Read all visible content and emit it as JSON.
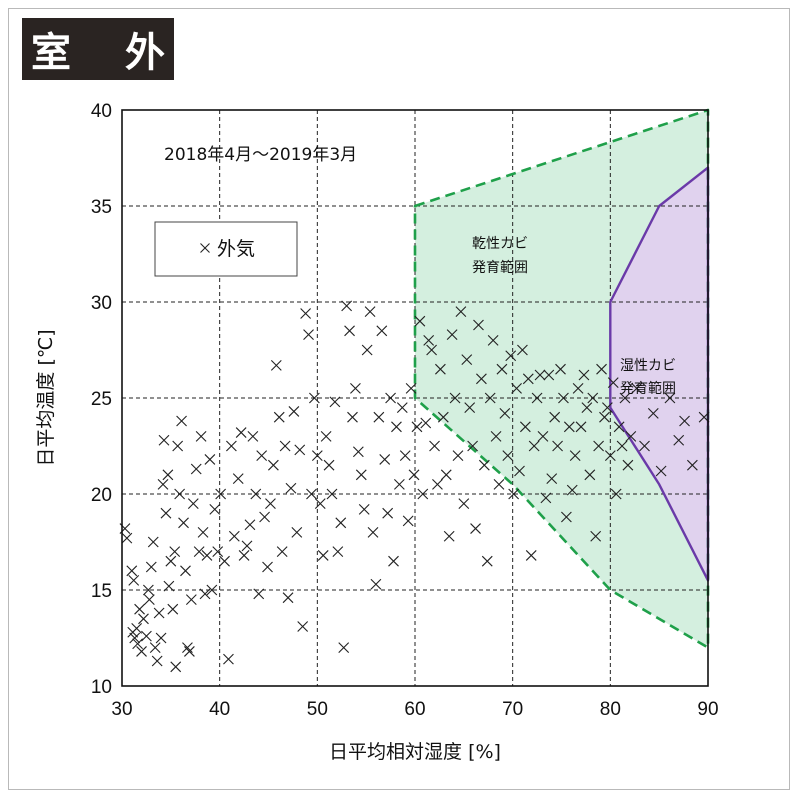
{
  "badge": {
    "label": "室 外"
  },
  "colors": {
    "dry_fill": "#d4efdf",
    "dry_edge": "#1fa04a",
    "wet_fill": "#e0d2ee",
    "wet_edge": "#6a3aa8",
    "marker": "#222222"
  },
  "chart_data": {
    "type": "scatter",
    "title": "2018年4月～2019年3月",
    "xlabel": "日平均相対湿度 [%]",
    "ylabel": "日平均温度 [℃]",
    "xlim": [
      30,
      90
    ],
    "ylim": [
      10,
      40
    ],
    "xticks": [
      30,
      40,
      50,
      60,
      70,
      80,
      90
    ],
    "yticks": [
      10,
      15,
      20,
      25,
      30,
      35,
      40
    ],
    "grid": "dashed",
    "legend": {
      "position": "upper-left",
      "entries": [
        "外気"
      ]
    },
    "series": [
      {
        "name": "外気",
        "marker": "x",
        "points": [
          [
            30.3,
            18.2
          ],
          [
            30.5,
            17.7
          ],
          [
            31.0,
            16.0
          ],
          [
            31.2,
            15.5
          ],
          [
            31.1,
            12.8
          ],
          [
            31.3,
            12.5
          ],
          [
            31.5,
            13.0
          ],
          [
            31.6,
            12.2
          ],
          [
            31.8,
            14.0
          ],
          [
            32.0,
            11.8
          ],
          [
            32.2,
            13.5
          ],
          [
            32.5,
            12.6
          ],
          [
            32.7,
            15.0
          ],
          [
            32.8,
            14.5
          ],
          [
            33.0,
            16.2
          ],
          [
            33.2,
            17.5
          ],
          [
            33.4,
            12.0
          ],
          [
            33.6,
            11.3
          ],
          [
            33.8,
            13.8
          ],
          [
            34.0,
            12.5
          ],
          [
            34.2,
            20.5
          ],
          [
            34.3,
            22.8
          ],
          [
            34.5,
            19.0
          ],
          [
            34.7,
            21.0
          ],
          [
            34.8,
            15.2
          ],
          [
            35.0,
            16.5
          ],
          [
            35.2,
            14.0
          ],
          [
            35.4,
            17.0
          ],
          [
            35.5,
            11.0
          ],
          [
            35.7,
            22.5
          ],
          [
            35.9,
            20.0
          ],
          [
            36.1,
            23.8
          ],
          [
            36.3,
            18.5
          ],
          [
            36.5,
            16.0
          ],
          [
            36.7,
            12.0
          ],
          [
            36.9,
            11.8
          ],
          [
            37.1,
            14.5
          ],
          [
            37.3,
            19.5
          ],
          [
            37.6,
            21.3
          ],
          [
            37.9,
            17.0
          ],
          [
            38.1,
            23.0
          ],
          [
            38.3,
            18.0
          ],
          [
            38.5,
            14.8
          ],
          [
            38.7,
            16.8
          ],
          [
            39.0,
            21.8
          ],
          [
            39.2,
            15.0
          ],
          [
            39.5,
            19.2
          ],
          [
            39.8,
            17.0
          ],
          [
            40.1,
            20.0
          ],
          [
            40.5,
            16.5
          ],
          [
            40.9,
            11.4
          ],
          [
            41.2,
            22.5
          ],
          [
            41.5,
            17.8
          ],
          [
            41.9,
            20.8
          ],
          [
            42.2,
            23.2
          ],
          [
            42.5,
            16.8
          ],
          [
            42.8,
            17.3
          ],
          [
            43.1,
            18.4
          ],
          [
            43.4,
            23.0
          ],
          [
            43.7,
            20.0
          ],
          [
            44.0,
            14.8
          ],
          [
            44.3,
            22.0
          ],
          [
            44.6,
            18.8
          ],
          [
            44.9,
            16.2
          ],
          [
            45.2,
            19.5
          ],
          [
            45.5,
            21.5
          ],
          [
            45.8,
            26.7
          ],
          [
            46.1,
            24.0
          ],
          [
            46.4,
            17.0
          ],
          [
            46.7,
            22.5
          ],
          [
            47.0,
            14.6
          ],
          [
            47.3,
            20.3
          ],
          [
            47.6,
            24.3
          ],
          [
            47.9,
            18.0
          ],
          [
            48.2,
            22.3
          ],
          [
            48.5,
            13.1
          ],
          [
            48.8,
            29.4
          ],
          [
            49.1,
            28.3
          ],
          [
            49.4,
            20.0
          ],
          [
            49.7,
            25.0
          ],
          [
            50.0,
            22.0
          ],
          [
            50.3,
            19.5
          ],
          [
            50.6,
            16.8
          ],
          [
            50.9,
            23.0
          ],
          [
            51.2,
            21.5
          ],
          [
            51.5,
            20.0
          ],
          [
            51.8,
            24.8
          ],
          [
            52.1,
            17.0
          ],
          [
            52.4,
            18.5
          ],
          [
            52.7,
            12.0
          ],
          [
            53.0,
            29.8
          ],
          [
            53.3,
            28.5
          ],
          [
            53.6,
            24.0
          ],
          [
            53.9,
            25.5
          ],
          [
            54.2,
            22.2
          ],
          [
            54.5,
            21.0
          ],
          [
            54.8,
            19.2
          ],
          [
            55.1,
            27.5
          ],
          [
            55.4,
            29.5
          ],
          [
            55.7,
            18.0
          ],
          [
            56.0,
            15.3
          ],
          [
            56.3,
            24.0
          ],
          [
            56.6,
            28.5
          ],
          [
            56.9,
            21.8
          ],
          [
            57.2,
            19.0
          ],
          [
            57.5,
            25.0
          ],
          [
            57.8,
            16.5
          ],
          [
            58.1,
            23.5
          ],
          [
            58.4,
            20.5
          ],
          [
            58.7,
            24.5
          ],
          [
            59.0,
            22.0
          ],
          [
            59.3,
            18.6
          ],
          [
            59.6,
            25.5
          ],
          [
            59.9,
            21.0
          ],
          [
            60.2,
            23.5
          ],
          [
            60.5,
            29.0
          ],
          [
            60.8,
            20.0
          ],
          [
            61.1,
            23.7
          ],
          [
            61.4,
            28.0
          ],
          [
            61.7,
            27.5
          ],
          [
            62.0,
            22.5
          ],
          [
            62.3,
            20.5
          ],
          [
            62.6,
            26.5
          ],
          [
            62.9,
            24.0
          ],
          [
            63.2,
            21.0
          ],
          [
            63.5,
            17.8
          ],
          [
            63.8,
            28.3
          ],
          [
            64.1,
            25.0
          ],
          [
            64.4,
            22.0
          ],
          [
            64.7,
            29.5
          ],
          [
            65.0,
            19.5
          ],
          [
            65.3,
            27.0
          ],
          [
            65.6,
            24.5
          ],
          [
            65.9,
            22.5
          ],
          [
            66.2,
            18.2
          ],
          [
            66.5,
            28.8
          ],
          [
            66.8,
            26.0
          ],
          [
            67.1,
            21.5
          ],
          [
            67.4,
            16.5
          ],
          [
            67.7,
            25.0
          ],
          [
            68.0,
            28.0
          ],
          [
            68.3,
            23.0
          ],
          [
            68.6,
            20.5
          ],
          [
            68.9,
            26.5
          ],
          [
            69.2,
            24.2
          ],
          [
            69.5,
            22.0
          ],
          [
            69.8,
            27.2
          ],
          [
            70.1,
            20.0
          ],
          [
            70.4,
            25.5
          ],
          [
            70.7,
            21.2
          ],
          [
            71.0,
            27.5
          ],
          [
            71.3,
            23.5
          ],
          [
            71.6,
            26.0
          ],
          [
            71.9,
            16.8
          ],
          [
            72.2,
            22.5
          ],
          [
            72.5,
            25.0
          ],
          [
            72.8,
            26.2
          ],
          [
            73.1,
            23.0
          ],
          [
            73.4,
            19.8
          ],
          [
            73.7,
            26.2
          ],
          [
            74.0,
            20.8
          ],
          [
            74.3,
            24.0
          ],
          [
            74.6,
            22.5
          ],
          [
            74.9,
            26.5
          ],
          [
            75.2,
            25.0
          ],
          [
            75.5,
            18.8
          ],
          [
            75.8,
            23.5
          ],
          [
            76.1,
            20.2
          ],
          [
            76.4,
            22.0
          ],
          [
            76.7,
            25.5
          ],
          [
            77.0,
            23.5
          ],
          [
            77.3,
            26.2
          ],
          [
            77.6,
            24.5
          ],
          [
            77.9,
            21.0
          ],
          [
            78.2,
            25.0
          ],
          [
            78.5,
            17.8
          ],
          [
            78.8,
            22.5
          ],
          [
            79.1,
            26.5
          ],
          [
            79.4,
            24.0
          ],
          [
            79.7,
            24.5
          ],
          [
            80.0,
            22.0
          ],
          [
            80.3,
            25.8
          ],
          [
            80.6,
            20.0
          ],
          [
            80.9,
            23.5
          ],
          [
            81.2,
            22.5
          ],
          [
            81.5,
            25.0
          ],
          [
            81.8,
            21.5
          ],
          [
            82.1,
            23.0
          ],
          [
            82.7,
            25.5
          ],
          [
            83.5,
            22.5
          ],
          [
            84.4,
            24.2
          ],
          [
            85.2,
            21.2
          ],
          [
            86.1,
            25.0
          ],
          [
            87.0,
            22.8
          ],
          [
            87.6,
            23.8
          ],
          [
            88.4,
            21.5
          ],
          [
            89.6,
            24.0
          ]
        ]
      }
    ],
    "regions": [
      {
        "name": "乾性カビ発育範囲",
        "label_lines": [
          "乾性カビ",
          "発育範囲"
        ],
        "style": "dashed-green-fill",
        "polygon": [
          [
            60,
            35
          ],
          [
            90,
            40
          ],
          [
            90,
            12
          ],
          [
            80,
            15
          ],
          [
            70,
            20.5
          ],
          [
            60,
            25
          ]
        ]
      },
      {
        "name": "湿性カビ発育範囲",
        "label_lines": [
          "湿性カビ",
          "発育範囲"
        ],
        "style": "solid-purple-fill",
        "polygon": [
          [
            80,
            30
          ],
          [
            85,
            35
          ],
          [
            90,
            37
          ],
          [
            90,
            15.5
          ],
          [
            85,
            20.5
          ],
          [
            80,
            24.5
          ]
        ]
      }
    ]
  }
}
